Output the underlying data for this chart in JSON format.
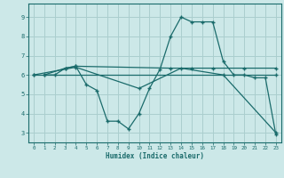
{
  "xlabel": "Humidex (Indice chaleur)",
  "background_color": "#cce8e8",
  "grid_color": "#aacece",
  "line_color": "#1a6b6b",
  "xlim": [
    -0.5,
    23.5
  ],
  "ylim": [
    2.5,
    9.7
  ],
  "yticks": [
    3,
    4,
    5,
    6,
    7,
    8,
    9
  ],
  "xticks": [
    0,
    1,
    2,
    3,
    4,
    5,
    6,
    7,
    8,
    9,
    10,
    11,
    12,
    13,
    14,
    15,
    16,
    17,
    18,
    19,
    20,
    21,
    22,
    23
  ],
  "series": [
    {
      "x": [
        1,
        2,
        3,
        4,
        5,
        6,
        7,
        8,
        9,
        10,
        11,
        12,
        13,
        14,
        15,
        16,
        17,
        18,
        19,
        20,
        21,
        22,
        23
      ],
      "y": [
        6.0,
        6.0,
        6.35,
        6.45,
        5.5,
        5.2,
        3.6,
        3.6,
        3.2,
        4.0,
        5.3,
        6.3,
        8.0,
        9.0,
        8.75,
        8.75,
        8.75,
        6.7,
        6.0,
        6.0,
        5.85,
        5.85,
        2.9
      ]
    },
    {
      "x": [
        1,
        3,
        4,
        13,
        15,
        17,
        20,
        23
      ],
      "y": [
        6.0,
        6.35,
        6.45,
        6.35,
        6.35,
        6.35,
        6.35,
        6.35
      ]
    },
    {
      "x": [
        0,
        4,
        10,
        14,
        18,
        23
      ],
      "y": [
        6.0,
        6.4,
        5.3,
        6.35,
        6.0,
        3.0
      ]
    },
    {
      "x": [
        0,
        23
      ],
      "y": [
        6.0,
        6.0
      ]
    }
  ]
}
